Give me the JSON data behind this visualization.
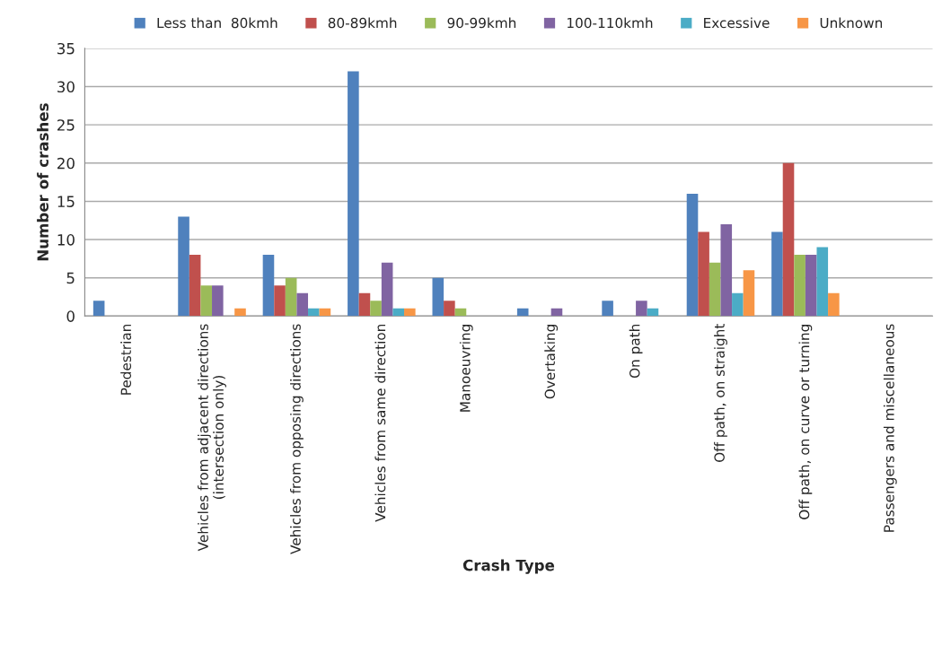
{
  "chart_data": {
    "type": "bar",
    "xlabel": "Crash Type",
    "ylabel": "Number of crashes",
    "categories": [
      "Pedestrian",
      "Vehicles from adjacent directions\n(intersection only)",
      "Vehicles from opposing directions",
      "Vehicles from same direction",
      "Manoeuvring",
      "Overtaking",
      "On path",
      "Off path, on straight",
      "Off path, on curve or turning",
      "Passengers and miscellaneous"
    ],
    "series": [
      {
        "name": "Less than  80kmh",
        "color": "#4f81bd",
        "values": [
          2,
          13,
          8,
          32,
          5,
          1,
          2,
          16,
          11,
          0
        ]
      },
      {
        "name": "80-89kmh",
        "color": "#c0504d",
        "values": [
          0,
          8,
          4,
          3,
          2,
          0,
          0,
          11,
          20,
          0
        ]
      },
      {
        "name": "90-99kmh",
        "color": "#9bbb59",
        "values": [
          0,
          4,
          5,
          2,
          1,
          0,
          0,
          7,
          8,
          0
        ]
      },
      {
        "name": "100-110kmh",
        "color": "#8064a2",
        "values": [
          0,
          4,
          3,
          7,
          0,
          1,
          2,
          12,
          8,
          0
        ]
      },
      {
        "name": "Excessive",
        "color": "#4bacc6",
        "values": [
          0,
          0,
          1,
          1,
          0,
          0,
          1,
          3,
          9,
          0
        ]
      },
      {
        "name": "Unknown",
        "color": "#f79646",
        "values": [
          0,
          1,
          1,
          1,
          0,
          0,
          0,
          6,
          3,
          0
        ]
      }
    ],
    "ylim": [
      0,
      35
    ],
    "yticks": [
      0,
      5,
      10,
      15,
      20,
      25,
      30,
      35
    ],
    "grid": "y",
    "legend": "top"
  }
}
